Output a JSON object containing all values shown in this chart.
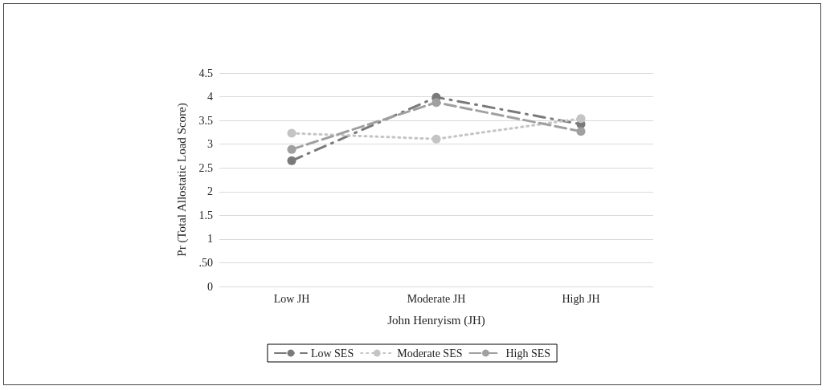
{
  "chart_data": {
    "type": "line",
    "xlabel": "John Henryism (JH)",
    "ylabel": "Pr (Total Allostatic Load Score)",
    "categories": [
      "Low JH",
      "Moderate JH",
      "High JH"
    ],
    "series": [
      {
        "name": "Low SES",
        "color": "#7a7a7a",
        "values": [
          2.65,
          3.99,
          3.42
        ],
        "line_style": "dashdot"
      },
      {
        "name": "Moderate SES",
        "color": "#c4c4c4",
        "values": [
          3.23,
          3.11,
          3.54
        ],
        "line_style": "dotted"
      },
      {
        "name": "High SES",
        "color": "#a0a0a0",
        "values": [
          2.89,
          3.88,
          3.27
        ],
        "line_style": "dashed"
      }
    ],
    "ylim": [
      0,
      4.5
    ],
    "yticks": [
      0,
      {
        "value": 0.5,
        "label": ".50"
      },
      1,
      1.5,
      2,
      2.5,
      3,
      3.5,
      4,
      4.5
    ],
    "grid": "y",
    "legend": "bottom",
    "marker": "circle"
  }
}
